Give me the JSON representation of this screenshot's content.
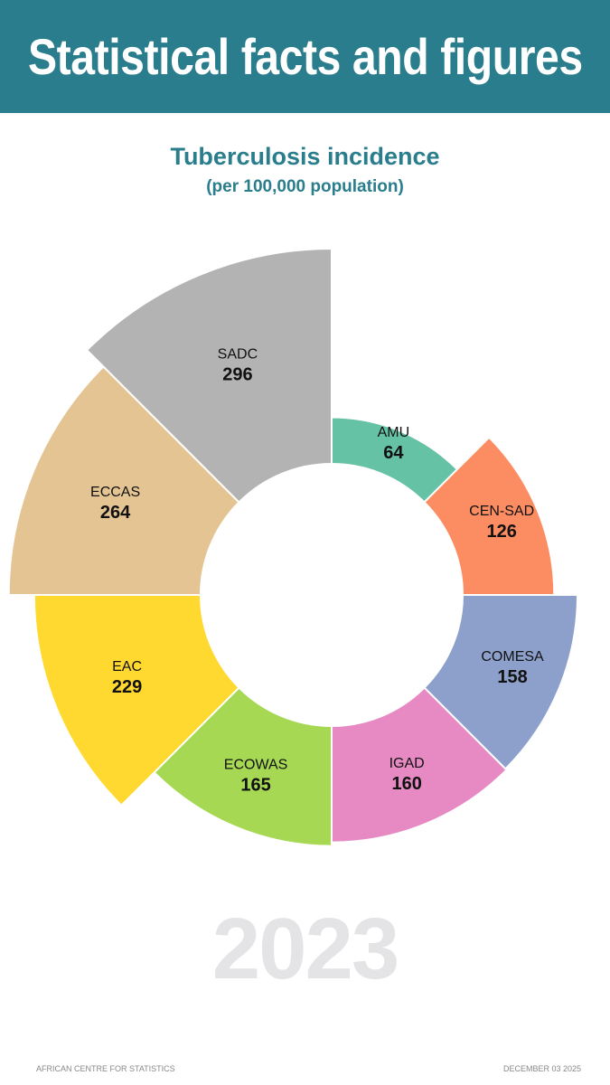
{
  "header": {
    "title": "Statistical facts and figures"
  },
  "chart_data": {
    "type": "polar-area",
    "title": "Tuberculosis incidence",
    "subtitle": "(per 100,000 population)",
    "categories": [
      "AMU",
      "CEN-SAD",
      "COMESA",
      "IGAD",
      "ECOWAS",
      "EAC",
      "ECCAS",
      "SADC"
    ],
    "values": [
      64,
      126,
      158,
      160,
      165,
      229,
      264,
      296
    ],
    "colors": [
      "#66c2a5",
      "#fc8d62",
      "#8da0cb",
      "#e78ac3",
      "#a6d854",
      "#ffd92f",
      "#e5c494",
      "#b3b3b3"
    ],
    "legend": "none",
    "grid": false
  },
  "year": "2023",
  "footer": {
    "left": "African Centre for Statistics",
    "right": "December 03 2025"
  }
}
